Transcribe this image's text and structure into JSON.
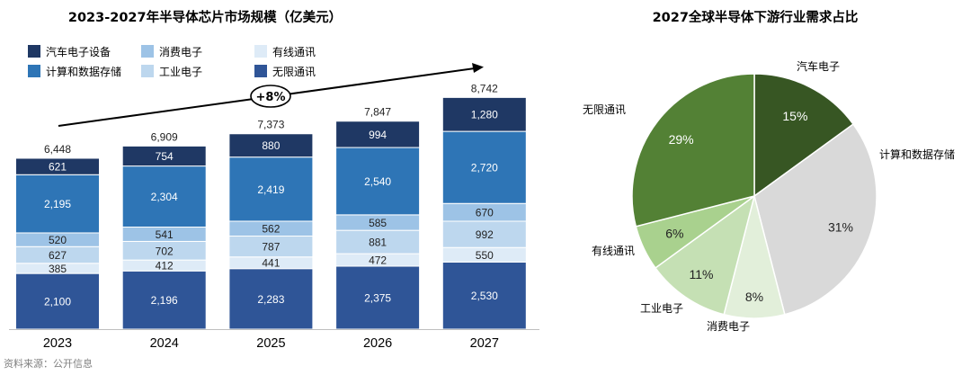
{
  "source_note": "资料来源：公开信息",
  "chart_data": [
    {
      "type": "bar",
      "stacked": true,
      "title": "2023-2027年半导体芯片市场规模（亿美元）",
      "categories": [
        "2023",
        "2024",
        "2025",
        "2026",
        "2027"
      ],
      "series": [
        {
          "name": "无限通讯",
          "color": "#2F5597",
          "values": [
            2100,
            2196,
            2283,
            2375,
            2530
          ]
        },
        {
          "name": "有线通讯",
          "color": "#DEEBF7",
          "values": [
            385,
            412,
            441,
            472,
            550
          ]
        },
        {
          "name": "工业电子",
          "color": "#BDD7EE",
          "values": [
            627,
            702,
            787,
            881,
            992
          ]
        },
        {
          "name": "消费电子",
          "color": "#9DC3E6",
          "values": [
            520,
            541,
            562,
            585,
            670
          ]
        },
        {
          "name": "计算和数据存储",
          "color": "#2E75B6",
          "values": [
            2195,
            2304,
            2419,
            2540,
            2720
          ]
        },
        {
          "name": "汽车电子设备",
          "color": "#1F3864",
          "values": [
            621,
            754,
            880,
            994,
            1280
          ]
        }
      ],
      "totals": [
        "6,448",
        "6,909",
        "7,373",
        "7,847",
        "8,742"
      ],
      "value_labels": [
        [
          "2,100",
          "2,196",
          "2,283",
          "2,375",
          "2,530"
        ],
        [
          "385",
          "412",
          "441",
          "472",
          "550"
        ],
        [
          "627",
          "702",
          "787",
          "881",
          "992"
        ],
        [
          "520",
          "541",
          "562",
          "585",
          "670"
        ],
        [
          "2,195",
          "2,304",
          "2,419",
          "2,540",
          "2,720"
        ],
        [
          "621",
          "754",
          "880",
          "994",
          "1,280"
        ]
      ],
      "legend_order": [
        "汽车电子设备",
        "消费电子",
        "有线通讯",
        "计算和数据存储",
        "工业电子",
        "无限通讯"
      ],
      "legend_position": "top-left",
      "growth_annotation": "+8%",
      "ylim": [
        0,
        9000
      ],
      "grid": false
    },
    {
      "type": "pie",
      "title": "2027全球半导体下游行业需求占比",
      "slices": [
        {
          "label": "汽车电子",
          "value": 15,
          "value_label": "15%",
          "color": "#375623"
        },
        {
          "label": "计算和数据存储",
          "value": 31,
          "value_label": "31%",
          "color": "#D9D9D9"
        },
        {
          "label": "消费电子",
          "value": 8,
          "value_label": "8%",
          "color": "#E2EFDA"
        },
        {
          "label": "工业电子",
          "value": 11,
          "value_label": "11%",
          "color": "#C5E0B4"
        },
        {
          "label": "有线通讯",
          "value": 6,
          "value_label": "6%",
          "color": "#A9D18E"
        },
        {
          "label": "无限通讯",
          "value": 29,
          "value_label": "29%",
          "color": "#538135"
        }
      ]
    }
  ]
}
